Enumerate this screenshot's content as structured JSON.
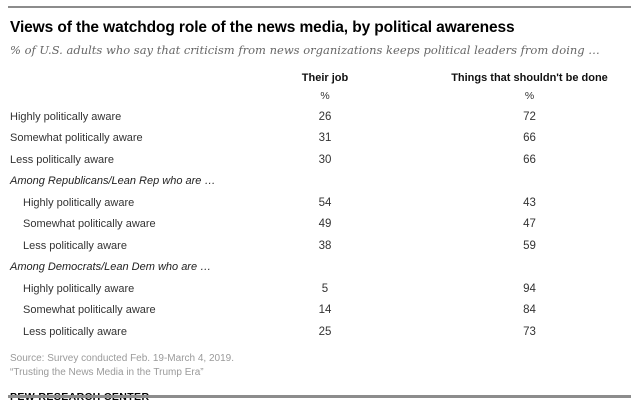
{
  "title": "Views of the watchdog role of the news media, by political awareness",
  "subtitle": "% of U.S. adults who say that criticism from news organizations keeps political leaders from doing …",
  "chart_data": {
    "type": "table",
    "columns": [
      "Their job",
      "Things that shouldn't be done"
    ],
    "unit": "%",
    "groups": [
      {
        "header": null,
        "rows": [
          {
            "label": "Highly politically aware",
            "their_job": 26,
            "things_that_shouldnt_be_done": 72
          },
          {
            "label": "Somewhat politically aware",
            "their_job": 31,
            "things_that_shouldnt_be_done": 66
          },
          {
            "label": "Less politically aware",
            "their_job": 30,
            "things_that_shouldnt_be_done": 66
          }
        ]
      },
      {
        "header": "Among Republicans/Lean Rep who are …",
        "rows": [
          {
            "label": "Highly politically aware",
            "their_job": 54,
            "things_that_shouldnt_be_done": 43
          },
          {
            "label": "Somewhat politically aware",
            "their_job": 49,
            "things_that_shouldnt_be_done": 47
          },
          {
            "label": "Less politically aware",
            "their_job": 38,
            "things_that_shouldnt_be_done": 59
          }
        ]
      },
      {
        "header": "Among Democrats/Lean Dem who are …",
        "rows": [
          {
            "label": "Highly politically aware",
            "their_job": 5,
            "things_that_shouldnt_be_done": 94
          },
          {
            "label": "Somewhat politically aware",
            "their_job": 14,
            "things_that_shouldnt_be_done": 84
          },
          {
            "label": "Less politically aware",
            "their_job": 25,
            "things_that_shouldnt_be_done": 73
          }
        ]
      }
    ]
  },
  "footer": {
    "source": "Source: Survey conducted Feb. 19-March 4, 2019.",
    "report": "“Trusting the News Media in the Trump Era”",
    "brand": "PEW RESEARCH CENTER"
  },
  "colors": {
    "rule_gray": "#8c8c8c",
    "subtitle_gray": "#666666",
    "note_gray": "#9a9a9a",
    "text_dark": "#333333",
    "title_black": "#000000"
  }
}
